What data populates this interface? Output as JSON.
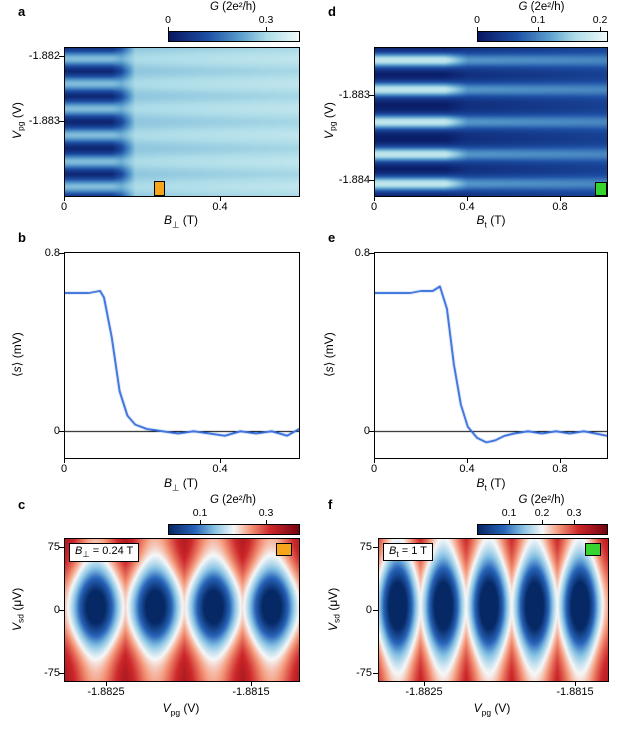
{
  "colors": {
    "line": "#2a66d9",
    "marker_a": "#f7a51b",
    "marker_d": "#35d42f"
  },
  "panels": {
    "a": {
      "label": "a",
      "cbar_title": {
        "main": "G",
        "sub": "",
        "rest": " (2e²/h)"
      },
      "cbar_ticks": [
        "0",
        "0.3"
      ],
      "yticks": [
        "-1.882",
        "-1.883"
      ],
      "xticks": [
        "0",
        "0.4"
      ],
      "xlabel": {
        "main": "B",
        "sub": "⊥",
        "rest": " (T)"
      },
      "ylabel": {
        "main": "V",
        "sub": "pg",
        "rest": " (V)"
      }
    },
    "b": {
      "label": "b",
      "yticks": [
        "0.8",
        "0"
      ],
      "xticks": [
        "0",
        "0.4"
      ],
      "xlabel": {
        "main": "B",
        "sub": "⊥",
        "rest": " (T)"
      },
      "ylabel": {
        "pre": "⟨",
        "main": "s",
        "sub": "",
        "rest": "⟩ (mV)"
      }
    },
    "c": {
      "label": "c",
      "cbar_title": {
        "main": "G",
        "sub": "",
        "rest": " (2e²/h)"
      },
      "cbar_ticks": [
        "0.1",
        "0.3"
      ],
      "yticks": [
        "75",
        "0",
        "-75"
      ],
      "xticks": [
        "-1.8825",
        "-1.8815"
      ],
      "xlabel": {
        "main": "V",
        "sub": "pg",
        "rest": " (V)"
      },
      "ylabel": {
        "main": "V",
        "sub": "sd",
        "rest": " (μV)"
      },
      "inset": {
        "main": "B",
        "sub": "⊥",
        "rest": " = 0.24 T"
      }
    },
    "d": {
      "label": "d",
      "cbar_title": {
        "main": "G",
        "sub": "",
        "rest": " (2e²/h)"
      },
      "cbar_ticks": [
        "0",
        "0.1",
        "0.2"
      ],
      "yticks": [
        "-1.883",
        "-1.884"
      ],
      "xticks": [
        "0",
        "0.4",
        "0.8"
      ],
      "xlabel": {
        "main": "B",
        "sub": "t",
        "rest": " (T)"
      },
      "ylabel": {
        "main": "V",
        "sub": "pg",
        "rest": " (V)"
      }
    },
    "e": {
      "label": "e",
      "yticks": [
        "0.8",
        "0"
      ],
      "xticks": [
        "0",
        "0.4",
        "0.8"
      ],
      "xlabel": {
        "main": "B",
        "sub": "t",
        "rest": " (T)"
      },
      "ylabel": {
        "pre": "⟨",
        "main": "s",
        "sub": "",
        "rest": "⟩ (mV)"
      }
    },
    "f": {
      "label": "f",
      "cbar_title": {
        "main": "G",
        "sub": "",
        "rest": " (2e²/h)"
      },
      "cbar_ticks": [
        "0.1",
        "0.2",
        "0.3"
      ],
      "yticks": [
        "75",
        "0",
        "-75"
      ],
      "xticks": [
        "-1.8825",
        "-1.8815"
      ],
      "xlabel": {
        "main": "V",
        "sub": "pg",
        "rest": " (V)"
      },
      "ylabel": {
        "main": "V",
        "sub": "sd",
        "rest": " (μV)"
      },
      "inset": {
        "main": "B",
        "sub": "t",
        "rest": " = 1 T"
      }
    }
  },
  "colormaps": {
    "blues": [
      {
        "t": 0,
        "rgb": [
          8,
          24,
          98
        ]
      },
      {
        "t": 0.3,
        "rgb": [
          30,
          80,
          165
        ]
      },
      {
        "t": 0.55,
        "rgb": [
          90,
          158,
          205
        ]
      },
      {
        "t": 0.75,
        "rgb": [
          172,
          220,
          232
        ]
      },
      {
        "t": 1,
        "rgb": [
          238,
          250,
          250
        ]
      }
    ],
    "bwr": [
      {
        "t": 0,
        "rgb": [
          6,
          40,
          100
        ]
      },
      {
        "t": 0.2,
        "rgb": [
          40,
          100,
          185
        ]
      },
      {
        "t": 0.35,
        "rgb": [
          135,
          195,
          228
        ]
      },
      {
        "t": 0.5,
        "rgb": [
          246,
          248,
          248
        ]
      },
      {
        "t": 0.63,
        "rgb": [
          244,
          150,
          120
        ]
      },
      {
        "t": 0.78,
        "rgb": [
          205,
          40,
          42
        ]
      },
      {
        "t": 1,
        "rgb": [
          118,
          4,
          18
        ]
      }
    ]
  },
  "chart_data": [
    {
      "id": "heatmap-a",
      "panel": "a",
      "type": "heatmap_stripes",
      "xlabel": "B⊥ (T)",
      "ylabel": "Vpg (V)",
      "x_range": [
        0,
        0.6
      ],
      "y_range": [
        -1.8819,
        -1.8841
      ],
      "x_tick_values": [
        0,
        0.4
      ],
      "y_tick_values": [
        -1.882,
        -1.883
      ],
      "colorbar_title": "G (2e²/h)",
      "colorbar_ticks": [
        0,
        0.3
      ],
      "vmin": 0,
      "vmax": 0.4,
      "colormap": "blues",
      "stripe_positions": [
        0.07,
        0.24,
        0.41,
        0.59,
        0.77,
        0.94
      ],
      "stripe_width": 0.055,
      "profile": [
        {
          "x": 0,
          "base": 0.01,
          "stripe": 0.26
        },
        {
          "x": 0.2,
          "base": 0.01,
          "stripe": 0.26
        },
        {
          "x": 0.24,
          "base": 0.09,
          "stripe": 0.24
        },
        {
          "x": 0.3,
          "base": 0.27,
          "stripe": 0.3
        },
        {
          "x": 1,
          "base": 0.29,
          "stripe": 0.33
        }
      ],
      "marker": {
        "B": 0.24,
        "color": "#f7a51b"
      }
    },
    {
      "id": "heatmap-d",
      "panel": "d",
      "type": "heatmap_stripes",
      "xlabel": "Bt (T)",
      "ylabel": "Vpg (V)",
      "x_range": [
        0,
        1.0
      ],
      "y_range": [
        -1.8824,
        -1.8842
      ],
      "x_tick_values": [
        0,
        0.4,
        0.8
      ],
      "y_tick_values": [
        -1.883,
        -1.884
      ],
      "colorbar_title": "G (2e²/h)",
      "colorbar_ticks": [
        0,
        0.1,
        0.2
      ],
      "vmin": 0,
      "vmax": 0.21,
      "colormap": "blues",
      "stripe_positions": [
        0.08,
        0.28,
        0.5,
        0.72,
        0.92
      ],
      "stripe_width": 0.05,
      "profile": [
        {
          "x": 0,
          "base": 0.005,
          "stripe": 0.175
        },
        {
          "x": 0.3,
          "base": 0.005,
          "stripe": 0.175
        },
        {
          "x": 0.4,
          "base": 0.025,
          "stripe": 0.11
        },
        {
          "x": 1,
          "base": 0.045,
          "stripe": 0.1
        }
      ],
      "marker": {
        "B": 1.0,
        "color": "#35d42f"
      }
    },
    {
      "id": "line-b",
      "panel": "b",
      "type": "line",
      "color": "#2a66d9",
      "xlabel": "B⊥ (T)",
      "ylabel": "⟨s⟩ (mV)",
      "xlim": [
        0,
        0.6
      ],
      "ylim": [
        -0.12,
        0.8
      ],
      "x_tick_values": [
        0,
        0.4
      ],
      "y_tick_values": [
        0,
        0.8
      ],
      "x": [
        0,
        0.03,
        0.06,
        0.09,
        0.1,
        0.12,
        0.14,
        0.16,
        0.18,
        0.21,
        0.25,
        0.29,
        0.33,
        0.37,
        0.41,
        0.45,
        0.49,
        0.53,
        0.57,
        0.6
      ],
      "y": [
        0.62,
        0.62,
        0.62,
        0.63,
        0.6,
        0.42,
        0.18,
        0.07,
        0.03,
        0.01,
        0.0,
        -0.01,
        0.0,
        -0.01,
        -0.02,
        0.0,
        -0.01,
        0.0,
        -0.02,
        0.01
      ]
    },
    {
      "id": "line-e",
      "panel": "e",
      "type": "line",
      "color": "#2a66d9",
      "xlabel": "Bt (T)",
      "ylabel": "⟨s⟩ (mV)",
      "xlim": [
        0,
        1.0
      ],
      "ylim": [
        -0.12,
        0.8
      ],
      "x_tick_values": [
        0,
        0.4,
        0.8
      ],
      "y_tick_values": [
        0,
        0.8
      ],
      "x": [
        0,
        0.05,
        0.1,
        0.15,
        0.2,
        0.25,
        0.28,
        0.31,
        0.34,
        0.37,
        0.4,
        0.44,
        0.48,
        0.52,
        0.56,
        0.6,
        0.66,
        0.72,
        0.78,
        0.84,
        0.9,
        0.95,
        1.0
      ],
      "y": [
        0.62,
        0.62,
        0.62,
        0.62,
        0.63,
        0.63,
        0.65,
        0.55,
        0.3,
        0.12,
        0.02,
        -0.03,
        -0.05,
        -0.04,
        -0.02,
        -0.01,
        0.0,
        -0.01,
        0.0,
        -0.01,
        0.0,
        -0.01,
        -0.02
      ]
    },
    {
      "id": "heatmap-c",
      "panel": "c",
      "type": "heatmap_diamonds",
      "xlabel": "Vpg (V)",
      "ylabel": "Vsd (μV)",
      "x_range": [
        -1.8828,
        -1.8811
      ],
      "y_range": [
        85,
        -85
      ],
      "x_tick_values": [
        -1.8825,
        -1.8815
      ],
      "y_tick_values": [
        75,
        0,
        -75
      ],
      "colorbar_title": "G (2e²/h)",
      "colorbar_ticks": [
        0.1,
        0.3
      ],
      "vmin": 0,
      "vmax": 0.4,
      "colormap": "bwr",
      "condition": "B⊥ = 0.24 T",
      "base": 0.375,
      "row_amp": 0.085,
      "row_w": 0.3,
      "col_amp": 0.125,
      "col_w": 0.1,
      "valley_amp": 0.21,
      "vx": 0.105,
      "vy": 0.27,
      "cy": 0.48,
      "centers": [
        0.13,
        0.385,
        0.635,
        0.885
      ]
    },
    {
      "id": "heatmap-f",
      "panel": "f",
      "type": "heatmap_diamonds",
      "xlabel": "Vpg (V)",
      "ylabel": "Vsd (μV)",
      "x_range": [
        -1.8828,
        -1.8811
      ],
      "y_range": [
        85,
        -85
      ],
      "x_tick_values": [
        -1.8825,
        -1.8815
      ],
      "y_tick_values": [
        75,
        0,
        -75
      ],
      "colorbar_title": "G (2e²/h)",
      "colorbar_ticks": [
        0.1,
        0.2,
        0.3
      ],
      "vmin": 0,
      "vmax": 0.4,
      "colormap": "bwr",
      "condition": "Bt = 1 T",
      "base": 0.36,
      "row_amp": 0.07,
      "row_w": 0.33,
      "col_amp": 0.125,
      "col_w": 0.085,
      "valley_amp": 0.23,
      "vx": 0.085,
      "vy": 0.33,
      "cy": 0.47,
      "centers": [
        0.08,
        0.28,
        0.48,
        0.68,
        0.88
      ]
    }
  ]
}
